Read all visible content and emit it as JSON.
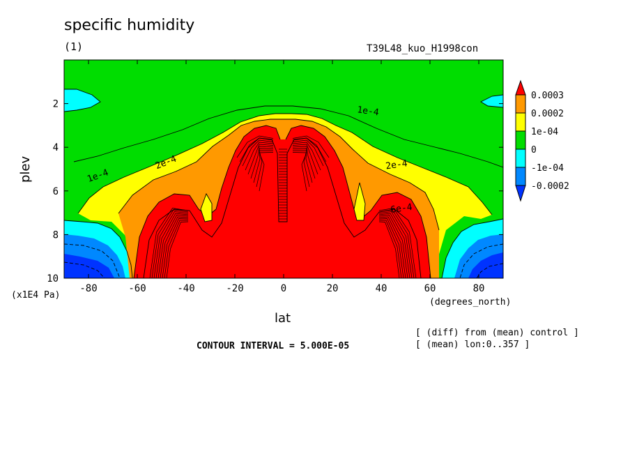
{
  "header": {
    "title": "specific humidity",
    "panel": "(1)",
    "run_id": "T39L48_kuo_H1998con"
  },
  "axes": {
    "xlabel": "lat",
    "ylabel": "plev",
    "x_unit": "(degrees_north)",
    "y_unit": "(x1E4 Pa)"
  },
  "footer": {
    "contour_interval": "CONTOUR INTERVAL = 5.000E-05",
    "note1": "[ (diff) from (mean) control ]",
    "note2": "[ (mean) lon:0..357 ]"
  },
  "chart_data": {
    "type": "contour",
    "xlim": [
      -90,
      90
    ],
    "ylim": [
      0,
      10
    ],
    "y_inverted": true,
    "xticks": [
      -80,
      -60,
      -40,
      -20,
      0,
      20,
      40,
      60,
      80
    ],
    "yticks": [
      2,
      4,
      6,
      8,
      10
    ],
    "contour_interval": 5e-05,
    "legend": {
      "placement": "right",
      "labels": [
        "0.0003",
        "0.0002",
        "1e-04",
        "0",
        "-1e-04",
        "-0.0002"
      ],
      "colors": [
        "#ff0000",
        "#ff9900",
        "#ffff00",
        "#00dd00",
        "#00ffff",
        "#0088ff",
        "#0033ff"
      ]
    },
    "contour_labels": [
      "1e-4",
      "2e-4",
      "1e-4",
      "2e-4",
      "6e-4"
    ],
    "fill_colors": {
      "green": "#00dd00",
      "yellow": "#ffff00",
      "orange": "#ff9900",
      "red": "#ff0000",
      "cyan": "#00ffff",
      "blue": "#0088ff",
      "darkblue": "#0033ff"
    }
  }
}
